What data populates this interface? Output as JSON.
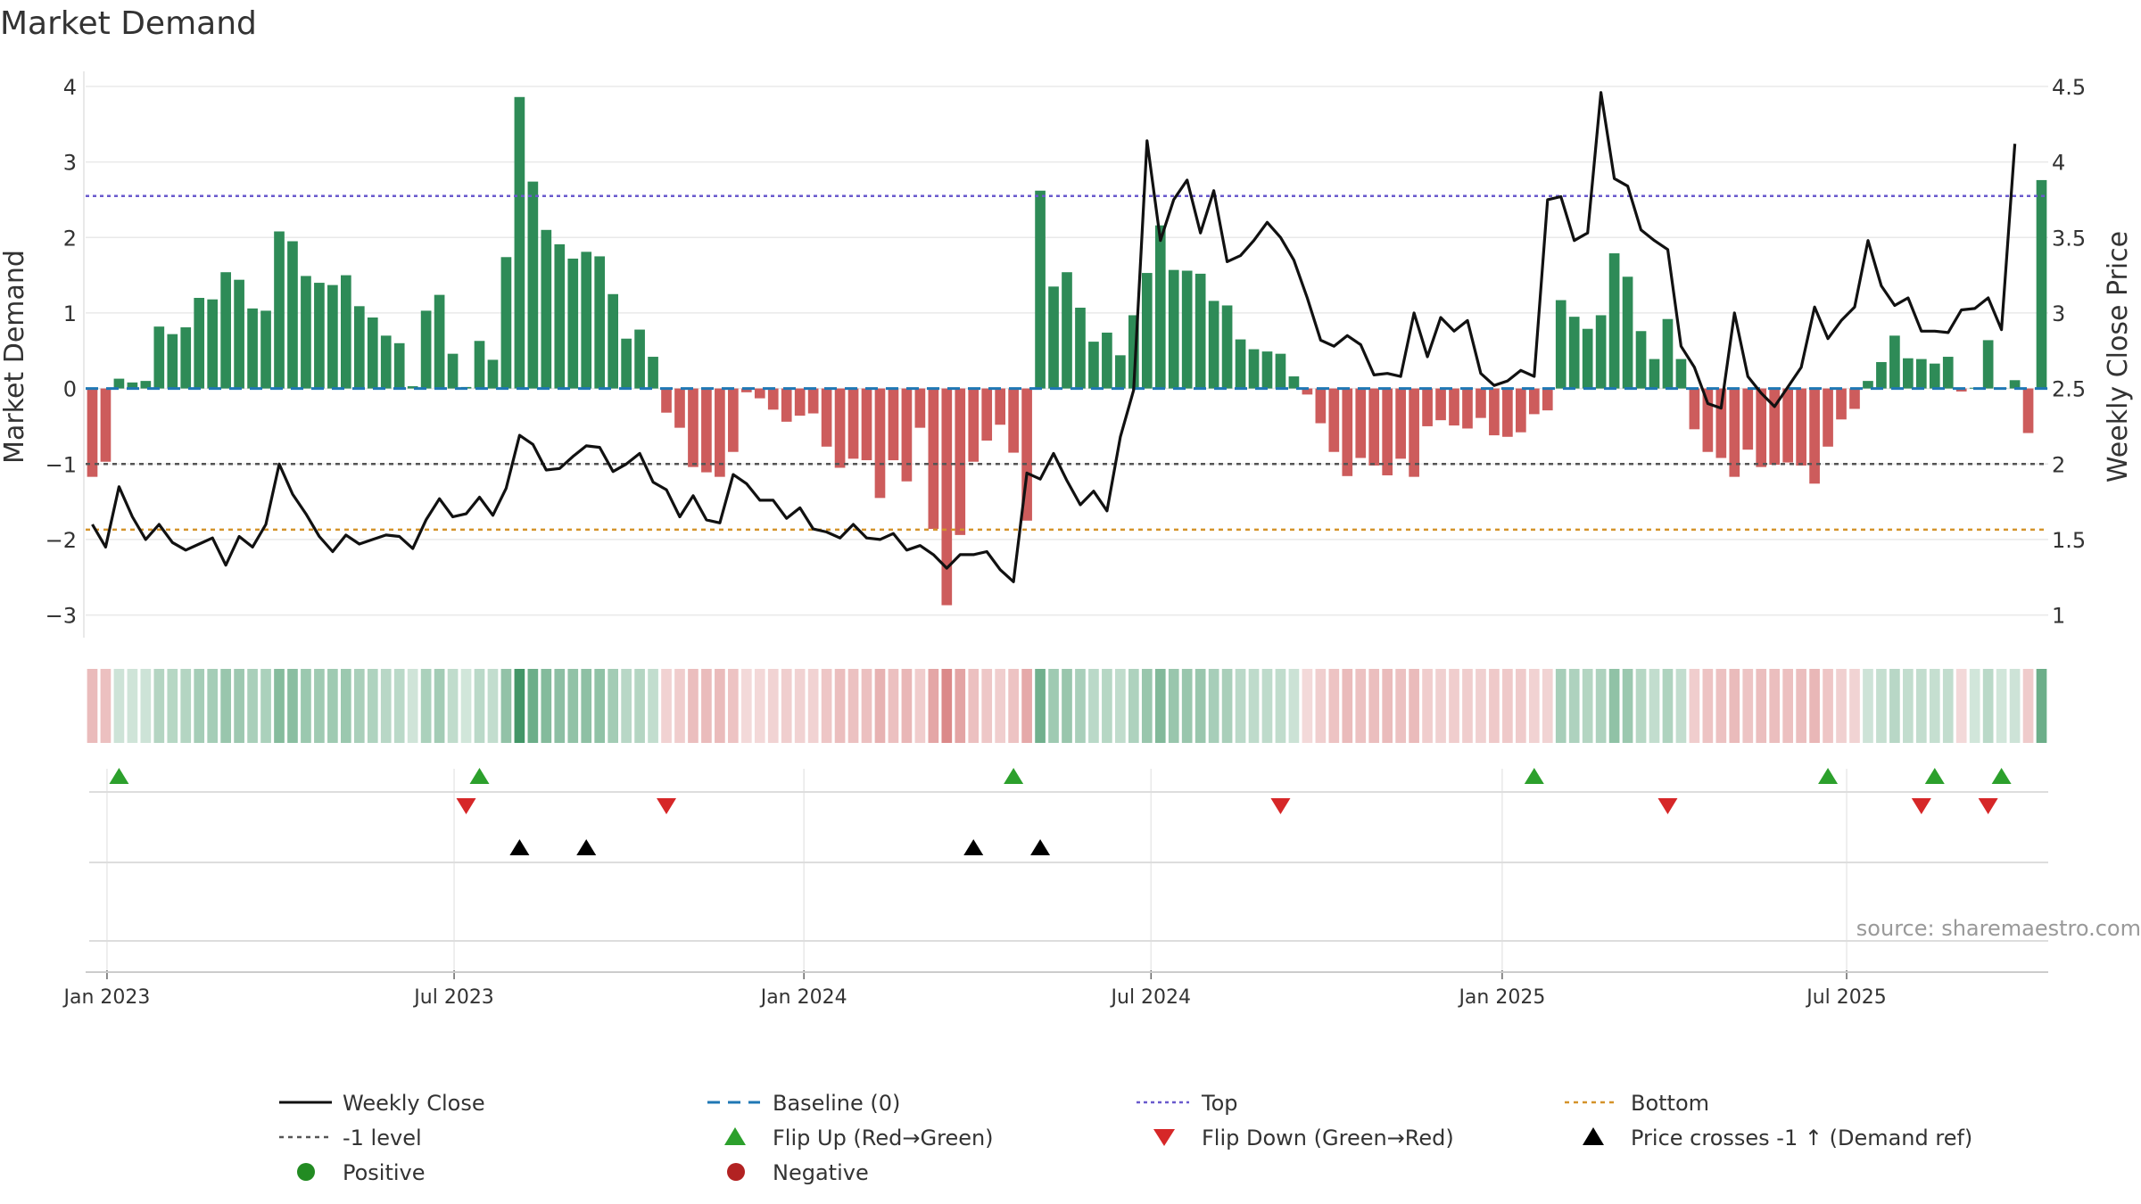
{
  "chart_data": {
    "type": "bar",
    "title": "Market Demand",
    "ylabel": "Market Demand",
    "y2label": "Weekly Close Price",
    "ylim": [
      -3.3,
      4.2
    ],
    "y_ticks": [
      4,
      3,
      2,
      1,
      0,
      -1,
      -2,
      -3
    ],
    "y_tick_labels": [
      "4",
      "3",
      "2",
      "1",
      "0",
      "−1",
      "−2",
      "−3"
    ],
    "y2lim": [
      0.85,
      4.6
    ],
    "y2_ticks": [
      4.5,
      4,
      3.5,
      3,
      2.5,
      2,
      1.5,
      1
    ],
    "y2_tick_labels": [
      "4.5",
      "4",
      "3.5",
      "3",
      "2.5",
      "2",
      "1.5",
      "1"
    ],
    "x_ticks": [
      {
        "week": 1.6,
        "label": "Jan 2023"
      },
      {
        "week": 27.6,
        "label": "Jul 2023"
      },
      {
        "week": 53.8,
        "label": "Jan 2024"
      },
      {
        "week": 79.8,
        "label": "Jul 2024"
      },
      {
        "week": 106.1,
        "label": "Jan 2025"
      },
      {
        "week": 131.9,
        "label": "Jul 2025"
      }
    ],
    "reference_lines": {
      "baseline": 0,
      "top": 2.55,
      "bottom": -1.87,
      "minus_one": -1
    },
    "demand": [
      -1.17,
      -0.97,
      0.13,
      0.08,
      0.1,
      0.82,
      0.72,
      0.81,
      1.2,
      1.18,
      1.54,
      1.44,
      1.06,
      1.03,
      2.08,
      1.95,
      1.49,
      1.4,
      1.37,
      1.5,
      1.09,
      0.94,
      0.7,
      0.6,
      0.03,
      1.03,
      1.24,
      0.46,
      0.02,
      0.63,
      0.38,
      1.74,
      3.86,
      2.74,
      2.1,
      1.91,
      1.72,
      1.81,
      1.75,
      1.25,
      0.66,
      0.78,
      0.42,
      -0.32,
      -0.52,
      -1.04,
      -1.11,
      -1.17,
      -0.84,
      -0.05,
      -0.13,
      -0.28,
      -0.44,
      -0.36,
      -0.33,
      -0.77,
      -1.05,
      -0.93,
      -0.95,
      -1.45,
      -0.95,
      -1.23,
      -0.52,
      -1.86,
      -2.87,
      -1.94,
      -0.97,
      -0.69,
      -0.48,
      -0.85,
      -1.75,
      2.62,
      1.35,
      1.54,
      1.07,
      0.62,
      0.74,
      0.44,
      0.97,
      1.53,
      2.16,
      1.57,
      1.56,
      1.52,
      1.16,
      1.1,
      0.65,
      0.52,
      0.49,
      0.46,
      0.16,
      -0.08,
      -0.46,
      -0.84,
      -1.16,
      -0.92,
      -1.02,
      -1.15,
      -0.93,
      -1.17,
      -0.5,
      -0.42,
      -0.49,
      -0.53,
      -0.39,
      -0.62,
      -0.64,
      -0.58,
      -0.34,
      -0.29,
      1.17,
      0.95,
      0.79,
      0.97,
      1.79,
      1.48,
      0.76,
      0.39,
      0.92,
      0.39,
      -0.54,
      -0.84,
      -0.92,
      -1.17,
      -0.81,
      -1.04,
      -1.01,
      -0.98,
      -1.02,
      -1.26,
      -0.77,
      -0.41,
      -0.27,
      0.1,
      0.35,
      0.7,
      0.4,
      0.39,
      0.33,
      0.42,
      -0.04,
      0.01,
      0.64,
      0.01,
      0.11,
      -0.59,
      2.76
    ],
    "weekly_close": [
      1.6,
      1.45,
      1.85,
      1.65,
      1.5,
      1.6,
      1.48,
      1.43,
      1.47,
      1.51,
      1.33,
      1.52,
      1.45,
      1.6,
      2.0,
      1.8,
      1.67,
      1.52,
      1.42,
      1.53,
      1.47,
      1.5,
      1.53,
      1.52,
      1.44,
      1.63,
      1.77,
      1.65,
      1.67,
      1.78,
      1.66,
      1.84,
      2.19,
      2.13,
      1.96,
      1.97,
      2.05,
      2.12,
      2.11,
      1.95,
      2.0,
      2.07,
      1.88,
      1.83,
      1.65,
      1.79,
      1.63,
      1.61,
      1.93,
      1.87,
      1.76,
      1.76,
      1.64,
      1.71,
      1.57,
      1.55,
      1.51,
      1.6,
      1.51,
      1.5,
      1.54,
      1.43,
      1.46,
      1.4,
      1.31,
      1.4,
      1.4,
      1.42,
      1.3,
      1.22,
      1.94,
      1.9,
      2.07,
      1.89,
      1.73,
      1.82,
      1.69,
      2.18,
      2.49,
      4.14,
      3.48,
      3.75,
      3.88,
      3.53,
      3.81,
      3.34,
      3.38,
      3.48,
      3.6,
      3.5,
      3.35,
      3.1,
      2.82,
      2.78,
      2.85,
      2.79,
      2.59,
      2.6,
      2.58,
      3.0,
      2.71,
      2.97,
      2.88,
      2.95,
      2.6,
      2.52,
      2.55,
      2.62,
      2.58,
      3.75,
      3.77,
      3.48,
      3.53,
      4.46,
      3.89,
      3.84,
      3.55,
      3.48,
      3.42,
      2.78,
      2.64,
      2.4,
      2.37,
      3.0,
      2.58,
      2.47,
      2.38,
      2.51,
      2.64,
      3.04,
      2.83,
      2.95,
      3.04,
      3.48,
      3.18,
      3.05,
      3.1,
      2.88,
      2.88,
      2.87,
      3.02,
      3.03,
      3.1,
      2.89,
      4.12
    ],
    "flip_up_weeks": [
      2,
      29,
      69,
      108,
      130,
      138,
      143
    ],
    "flip_down_weeks": [
      28,
      43,
      89,
      118,
      137,
      142
    ],
    "cross_weeks": [
      32,
      37,
      66,
      71
    ],
    "legend": {
      "weekly_close": "Weekly Close",
      "baseline": "Baseline (0)",
      "top": "Top",
      "bottom": "Bottom",
      "minus_one": "-1 level",
      "flip_up": "Flip Up (Red→Green)",
      "flip_down": "Flip Down (Green→Red)",
      "cross": "Price crosses -1 ↑ (Demand ref)",
      "positive": "Positive",
      "negative": "Negative"
    },
    "source": "source: sharemaestro.com"
  },
  "colors": {
    "positive": "#2e8b57",
    "negative": "#cd5c5c",
    "price": "#111111",
    "baseline": "#1f77b4",
    "top": "#6a5acd",
    "bottom": "#d4932a",
    "minus_one": "#555555",
    "flip_up": "#2ca02c",
    "flip_down": "#d62728",
    "cross": "#000000",
    "positive_dot": "#228b22",
    "negative_dot": "#b22222"
  }
}
